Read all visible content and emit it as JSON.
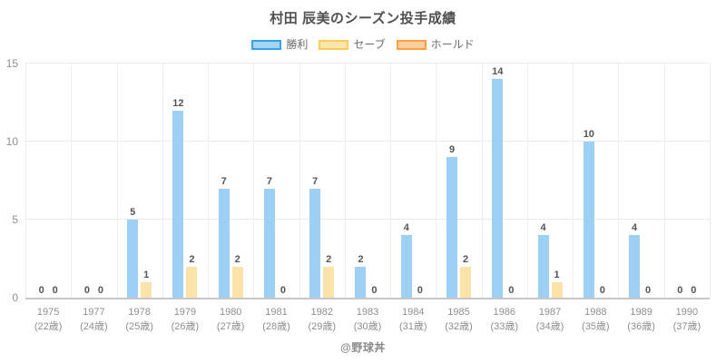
{
  "title": "村田 辰美のシーズン投手成績",
  "credit": "@野球丼",
  "legend": {
    "items": [
      {
        "label": "勝利",
        "fill": "#a3d4f4",
        "border": "#36a2eb"
      },
      {
        "label": "セーブ",
        "fill": "#ffe6aa",
        "border": "#ffcd56"
      },
      {
        "label": "ホールド",
        "fill": "#ffcf9f",
        "border": "#ff9f40"
      }
    ]
  },
  "chart_data": {
    "type": "bar",
    "title": "村田 辰美のシーズン投手成績",
    "categories": [
      {
        "year": "1975",
        "age": "(22歳)"
      },
      {
        "year": "1977",
        "age": "(24歳)"
      },
      {
        "year": "1978",
        "age": "(25歳)"
      },
      {
        "year": "1979",
        "age": "(26歳)"
      },
      {
        "year": "1980",
        "age": "(27歳)"
      },
      {
        "year": "1981",
        "age": "(28歳)"
      },
      {
        "year": "1982",
        "age": "(29歳)"
      },
      {
        "year": "1983",
        "age": "(30歳)"
      },
      {
        "year": "1984",
        "age": "(31歳)"
      },
      {
        "year": "1985",
        "age": "(32歳)"
      },
      {
        "year": "1986",
        "age": "(33歳)"
      },
      {
        "year": "1987",
        "age": "(34歳)"
      },
      {
        "year": "1988",
        "age": "(35歳)"
      },
      {
        "year": "1989",
        "age": "(36歳)"
      },
      {
        "year": "1990",
        "age": "(37歳)"
      }
    ],
    "series": [
      {
        "name": "勝利",
        "key": "win",
        "fill": "#9cd0f4",
        "values": [
          0,
          0,
          5,
          12,
          7,
          7,
          7,
          2,
          4,
          9,
          14,
          4,
          10,
          4,
          0
        ]
      },
      {
        "name": "セーブ",
        "key": "save",
        "fill": "#fce3aa",
        "values": [
          0,
          0,
          1,
          2,
          2,
          0,
          2,
          0,
          0,
          2,
          0,
          1,
          0,
          0,
          0
        ]
      },
      {
        "name": "ホールド",
        "key": "hold",
        "fill": "#ffcf9f",
        "values": [
          null,
          null,
          null,
          null,
          null,
          null,
          null,
          null,
          null,
          null,
          null,
          null,
          null,
          null,
          null
        ]
      }
    ],
    "ylim": [
      0,
      15
    ],
    "yticks": [
      0,
      5,
      10,
      15
    ],
    "grid": true,
    "legend_position": "top",
    "value_labels": true
  }
}
